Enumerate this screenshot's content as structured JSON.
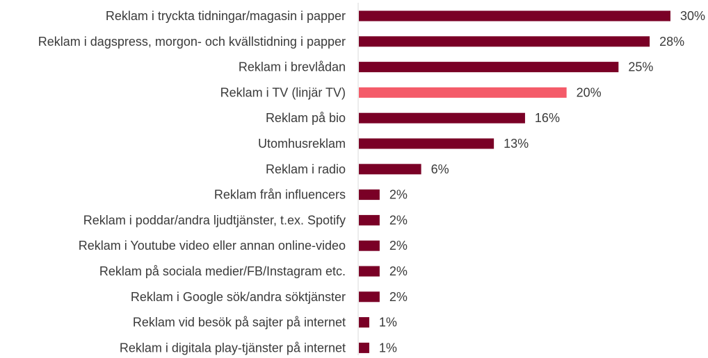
{
  "chart_data": {
    "type": "bar",
    "orientation": "horizontal",
    "title": "",
    "xlabel": "",
    "ylabel": "",
    "xlim": [
      0,
      30
    ],
    "grid": false,
    "legend": "none",
    "value_suffix": "%",
    "colors": {
      "default": "#7a0026",
      "highlight": "#f45b69"
    },
    "highlight_index": 3,
    "categories": [
      "Reklam i tryckta tidningar/magasin i papper",
      "Reklam i dagspress, morgon- och kvällstidning i papper",
      "Reklam i brevlådan",
      "Reklam i TV (linjär TV)",
      "Reklam på bio",
      "Utomhusreklam",
      "Reklam i radio",
      "Reklam från influencers",
      "Reklam i poddar/andra ljudtjänster, t.ex. Spotify",
      "Reklam i Youtube video eller annan online-video",
      "Reklam på sociala medier/FB/Instagram etc.",
      "Reklam i Google sök/andra söktjänster",
      "Reklam vid besök på sajter på internet",
      "Reklam i digitala play-tjänster på internet"
    ],
    "values": [
      30,
      28,
      25,
      20,
      16,
      13,
      6,
      2,
      2,
      2,
      2,
      2,
      1,
      1
    ]
  }
}
